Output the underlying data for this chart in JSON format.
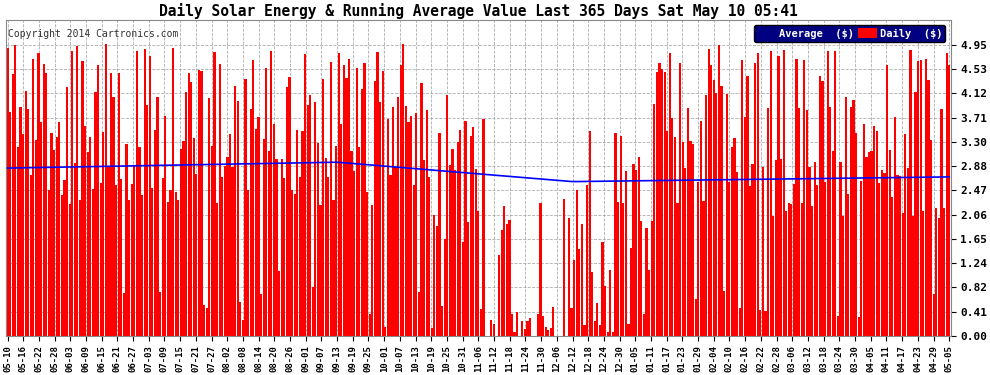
{
  "title": "Daily Solar Energy & Running Average Value Last 365 Days Sat May 10 05:41",
  "copyright": "Copyright 2014 Cartronics.com",
  "bar_color": "#FF0000",
  "avg_line_color": "#0000FF",
  "background_color": "#FFFFFF",
  "plot_bg_color": "#FFFFFF",
  "grid_color": "#AAAAAA",
  "ylim": [
    0.0,
    5.37
  ],
  "yticks": [
    0.0,
    0.41,
    0.82,
    1.24,
    1.65,
    2.06,
    2.47,
    2.88,
    3.3,
    3.71,
    4.12,
    4.53,
    4.95
  ],
  "num_days": 365,
  "xtick_labels": [
    "05-10",
    "05-16",
    "05-22",
    "05-28",
    "06-03",
    "06-09",
    "06-15",
    "06-21",
    "06-27",
    "07-03",
    "07-09",
    "07-15",
    "07-21",
    "07-27",
    "08-02",
    "08-08",
    "08-14",
    "08-20",
    "08-26",
    "09-01",
    "09-07",
    "09-13",
    "09-19",
    "09-25",
    "10-01",
    "10-07",
    "10-13",
    "10-19",
    "10-25",
    "10-31",
    "11-06",
    "11-12",
    "11-18",
    "11-24",
    "11-30",
    "12-06",
    "12-12",
    "12-18",
    "12-24",
    "12-30",
    "01-05",
    "01-11",
    "01-17",
    "01-23",
    "01-29",
    "02-04",
    "02-10",
    "02-16",
    "02-22",
    "02-28",
    "03-06",
    "03-12",
    "03-18",
    "03-24",
    "03-30",
    "04-05",
    "04-11",
    "04-17",
    "04-23",
    "04-29",
    "05-05"
  ]
}
